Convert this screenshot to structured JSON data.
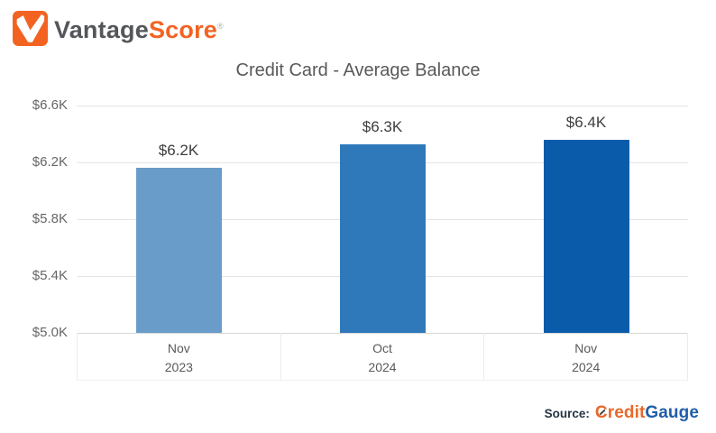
{
  "logo": {
    "vantage": "Vantage",
    "score": "Score",
    "trademark": "®",
    "brand_orange": "#F26322",
    "brand_gray": "#54565B"
  },
  "title": "Credit Card - Average Balance",
  "source": {
    "prefix": "Source:",
    "credit": "Credit",
    "gauge": "Gauge",
    "credit_color": "#E8692A",
    "gauge_color": "#1F5FA9"
  },
  "chart_data": {
    "type": "bar",
    "title": "Credit Card - Average Balance",
    "unit": "USD (thousands)",
    "categories": [
      "Nov 2023",
      "Oct 2024",
      "Nov 2024"
    ],
    "category_lines": [
      [
        "Nov",
        "2023"
      ],
      [
        "Oct",
        "2024"
      ],
      [
        "Nov",
        "2024"
      ]
    ],
    "values": [
      6.16,
      6.33,
      6.36
    ],
    "value_labels": [
      "$6.2K",
      "$6.3K",
      "$6.4K"
    ],
    "bar_colors": [
      "#699CC9",
      "#2F79BB",
      "#0A5CAB"
    ],
    "ylim": [
      5.0,
      6.6
    ],
    "yticks": [
      {
        "label": "$5.0K",
        "value": 5.0
      },
      {
        "label": "$5.4K",
        "value": 5.4
      },
      {
        "label": "$5.8K",
        "value": 5.8
      },
      {
        "label": "$6.2K",
        "value": 6.2
      },
      {
        "label": "$6.6K",
        "value": 6.6
      }
    ],
    "grid": "horizontal",
    "legend": "none",
    "xlabel": "",
    "ylabel": ""
  }
}
